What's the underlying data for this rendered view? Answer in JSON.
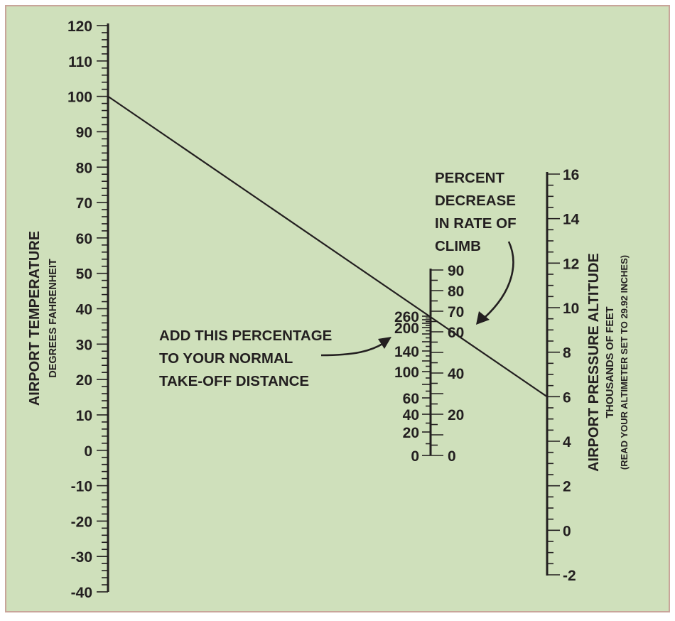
{
  "background_color": "#cfe0bb",
  "border_color": "#c8a59a",
  "ink_color": "#231f20",
  "temperature_scale": {
    "title": "AIRPORT TEMPERATURE",
    "subtitle": "DEGREES FAHRENHEIT",
    "range": [
      -40,
      120
    ],
    "tick_labels": [
      "120",
      "110",
      "100",
      "90",
      "80",
      "70",
      "60",
      "50",
      "40",
      "30",
      "20",
      "10",
      "0",
      "-10",
      "-20",
      "-30",
      "-40"
    ]
  },
  "takeoff_scale": {
    "label_lines": [
      "ADD THIS PERCENTAGE",
      "TO YOUR NORMAL",
      "TAKE-OFF DISTANCE"
    ],
    "tick_labels": [
      "260",
      "200",
      "140",
      "100",
      "60",
      "40",
      "20",
      "0"
    ]
  },
  "climb_scale": {
    "label_lines": [
      "PERCENT",
      "DECREASE",
      "IN RATE OF",
      "CLIMB"
    ],
    "range": [
      0,
      90
    ],
    "tick_labels": [
      "90",
      "80",
      "70",
      "60",
      "40",
      "20",
      "0"
    ]
  },
  "altitude_scale": {
    "title": "AIRPORT PRESSURE ALTITUDE",
    "subtitle": "THOUSANDS OF FEET",
    "note": "(READ YOUR ALTIMETER SET TO 29.92 INCHES)",
    "range": [
      -2,
      16
    ],
    "tick_labels": [
      "16",
      "14",
      "12",
      "10",
      "8",
      "6",
      "4",
      "2",
      "0",
      "-2"
    ]
  },
  "example_line": {
    "temperature_f": 100,
    "pressure_altitude_kft": 6
  }
}
